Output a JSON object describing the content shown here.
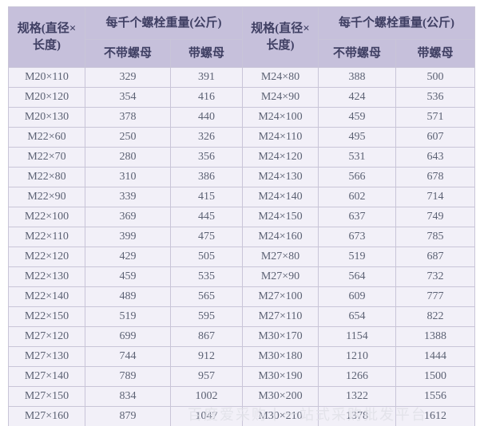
{
  "table": {
    "header": {
      "spec": "规格(直径×长度)",
      "weight_group": "每千个螺栓重量(公斤)",
      "without_nut": "不带螺母",
      "with_nut": "带螺母"
    },
    "rows": [
      [
        "M20×110",
        "329",
        "391",
        "M24×80",
        "388",
        "500"
      ],
      [
        "M20×120",
        "354",
        "416",
        "M24×90",
        "424",
        "536"
      ],
      [
        "M20×130",
        "378",
        "440",
        "M24×100",
        "459",
        "571"
      ],
      [
        "M22×60",
        "250",
        "326",
        "M24×110",
        "495",
        "607"
      ],
      [
        "M22×70",
        "280",
        "356",
        "M24×120",
        "531",
        "643"
      ],
      [
        "M22×80",
        "310",
        "386",
        "M24×130",
        "566",
        "678"
      ],
      [
        "M22×90",
        "339",
        "415",
        "M24×140",
        "602",
        "714"
      ],
      [
        "M22×100",
        "369",
        "445",
        "M24×150",
        "637",
        "749"
      ],
      [
        "M22×110",
        "399",
        "475",
        "M24×160",
        "673",
        "785"
      ],
      [
        "M22×120",
        "429",
        "505",
        "M27×80",
        "519",
        "687"
      ],
      [
        "M22×130",
        "459",
        "535",
        "M27×90",
        "564",
        "732"
      ],
      [
        "M22×140",
        "489",
        "565",
        "M27×100",
        "609",
        "777"
      ],
      [
        "M22×150",
        "519",
        "595",
        "M27×110",
        "654",
        "822"
      ],
      [
        "M27×120",
        "699",
        "867",
        "M30×170",
        "1154",
        "1388"
      ],
      [
        "M27×130",
        "744",
        "912",
        "M30×180",
        "1210",
        "1444"
      ],
      [
        "M27×140",
        "789",
        "957",
        "M30×190",
        "1266",
        "1500"
      ],
      [
        "M27×150",
        "834",
        "1002",
        "M30×200",
        "1322",
        "1556"
      ],
      [
        "M27×160",
        "879",
        "1047",
        "M30×210",
        "1378",
        "1612"
      ]
    ]
  },
  "watermark": {
    "text": "百度爱采购丨一站式采购批发平台"
  },
  "colors": {
    "header_bg": "#c6c0db",
    "header_text": "#3f3f63",
    "cell_bg": "#f2f0f8",
    "cell_text": "#5c6274",
    "border": "#c9c5d8"
  }
}
